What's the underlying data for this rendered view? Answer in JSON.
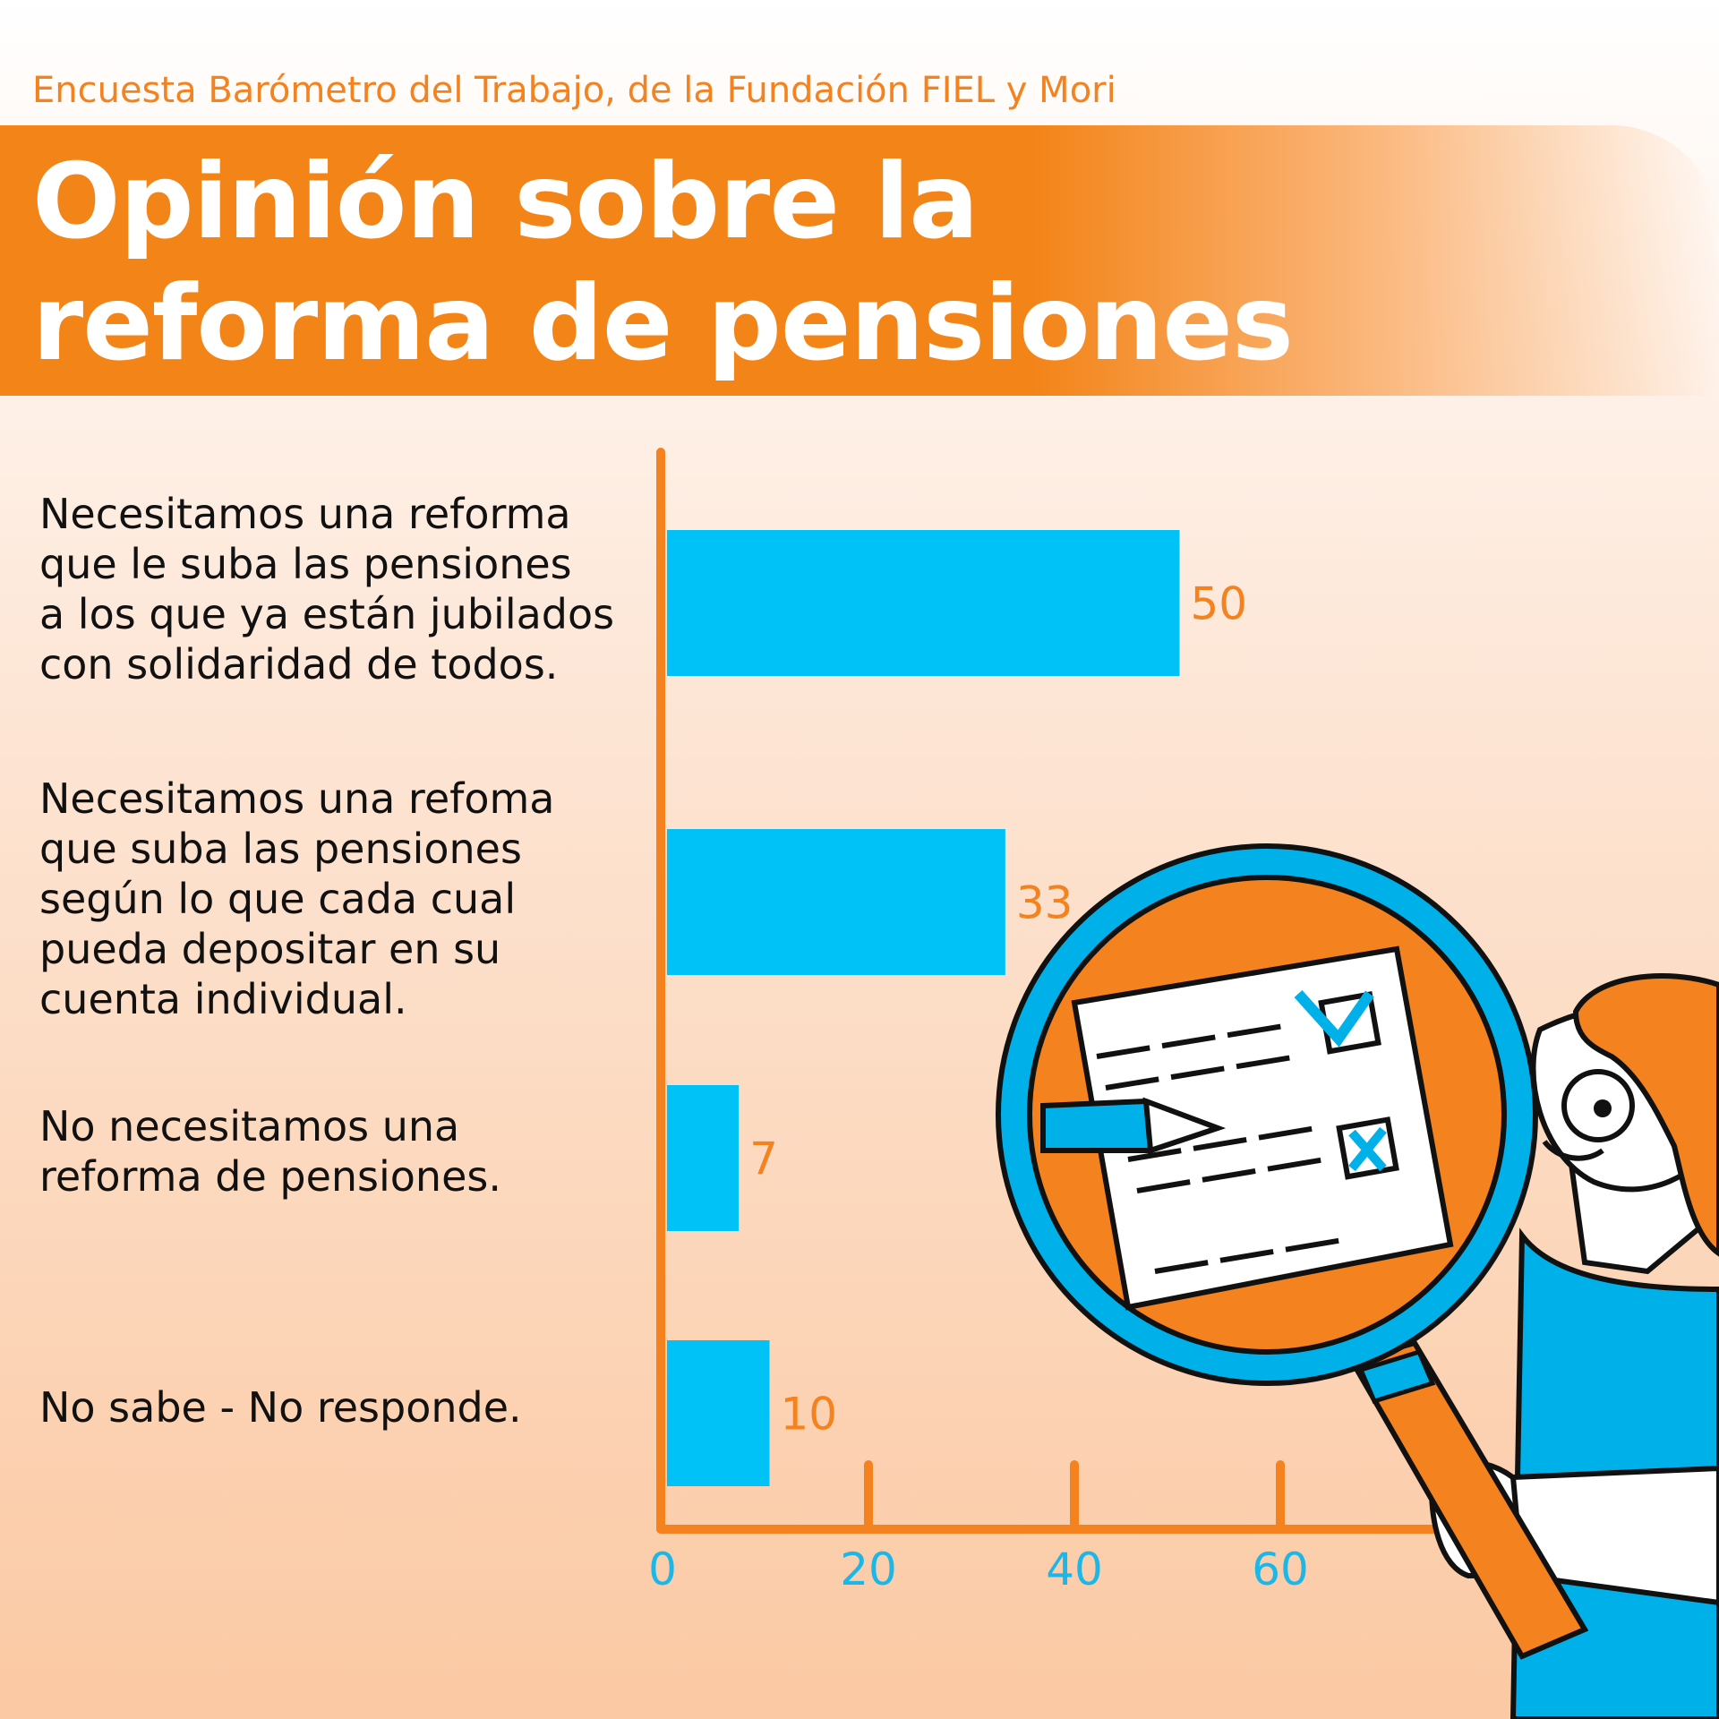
{
  "header": {
    "subtitle": "Encuesta Barómetro del Trabajo, de la Fundación FIEL y Mori",
    "title": "Opinión sobre la\nreforma de pensiones"
  },
  "colors": {
    "accent": "#f4821f",
    "bar": "#00c2f7",
    "tick": "#1ab7e8"
  },
  "chart_data": {
    "type": "bar",
    "orientation": "horizontal",
    "categories": [
      "Necesitamos una reforma\nque le suba las pensiones\na los que ya están jubilados\ncon solidaridad de todos.",
      "Necesitamos una refoma\nque suba las pensiones\nsegún lo que cada cual\npueda depositar en su\ncuenta individual.",
      "No necesitamos una\nreforma de pensiones.",
      "No sabe - No responde."
    ],
    "values": [
      50,
      33,
      7,
      10
    ],
    "xticks": [
      0,
      20,
      40,
      60
    ],
    "xlim": [
      0,
      80
    ],
    "grid": false,
    "legend": "none"
  }
}
